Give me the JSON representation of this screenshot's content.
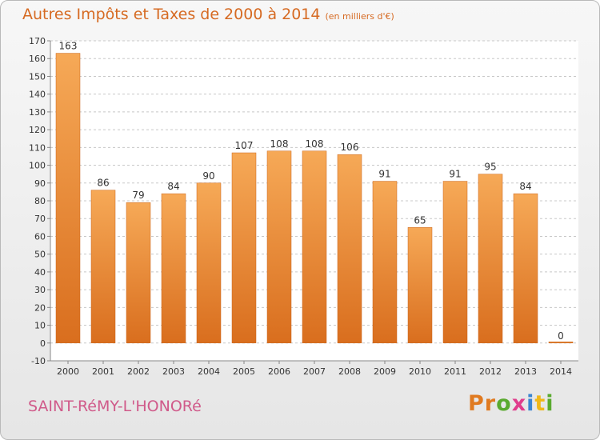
{
  "title": "Autres Impôts et Taxes de 2000 à 2014",
  "unit": "(en milliers d'€)",
  "city": "SAINT-RéMY-L'HONORé",
  "brand": "Proxiti",
  "colors": {
    "bar_top": "#f6a957",
    "bar_bottom": "#d96e1e",
    "title": "#d66a22",
    "city": "#d05a8a",
    "grid": "#c8c8c8"
  },
  "chart_data": {
    "type": "bar",
    "title": "Autres Impôts et Taxes de 2000 à 2014",
    "ylabel": "",
    "xlabel": "",
    "categories": [
      "2000",
      "2001",
      "2002",
      "2003",
      "2004",
      "2005",
      "2006",
      "2007",
      "2008",
      "2009",
      "2010",
      "2011",
      "2012",
      "2013",
      "2014"
    ],
    "values": [
      163,
      86,
      79,
      84,
      90,
      107,
      108,
      108,
      106,
      91,
      65,
      91,
      95,
      84,
      0
    ],
    "ylim": [
      -10,
      170
    ],
    "ytick_step": 10,
    "grid": true,
    "data_labels": true
  }
}
